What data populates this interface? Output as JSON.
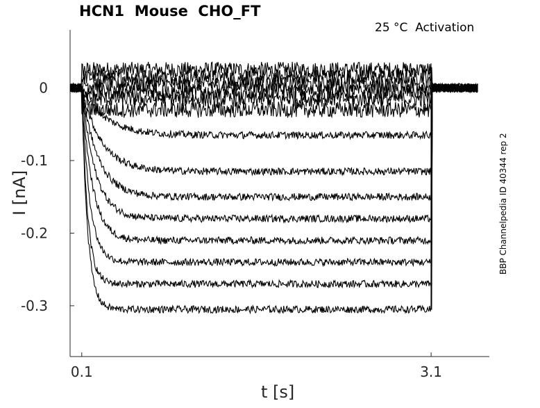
{
  "chart_data": {
    "type": "line",
    "title": "HCN1  Mouse  CHO_FT",
    "condition_label": "25 °C  Activation",
    "side_label": "BBP Channelpedia ID 40344 rep 2",
    "xlabel": "t [s]",
    "ylabel": "I [nA]",
    "xlim": [
      0.0,
      3.6
    ],
    "ylim": [
      -0.37,
      0.08
    ],
    "xticks": [
      0.1,
      3.1
    ],
    "xtick_labels": [
      "0.1",
      "3.1"
    ],
    "yticks": [
      0,
      -0.1,
      -0.2,
      -0.3
    ],
    "ytick_labels": [
      "0",
      "-0.1",
      "-0.2",
      "-0.3"
    ],
    "grid": false,
    "pulse": {
      "start": 0.1,
      "end": 3.1
    },
    "series": [
      {
        "steady": 0.025
      },
      {
        "steady": 0.015
      },
      {
        "steady": 0.005
      },
      {
        "steady": -0.005
      },
      {
        "steady": -0.015
      },
      {
        "steady": -0.03
      },
      {
        "steady": -0.065
      },
      {
        "steady": -0.115
      },
      {
        "steady": -0.15
      },
      {
        "steady": -0.18
      },
      {
        "steady": -0.21
      },
      {
        "steady": -0.24
      },
      {
        "steady": -0.27
      },
      {
        "steady": -0.305
      }
    ]
  }
}
